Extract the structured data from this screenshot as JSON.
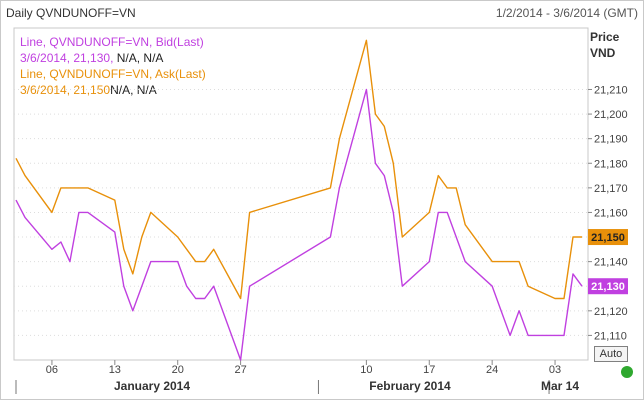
{
  "header": {
    "title": "Daily QVNDUNOFF=VN",
    "date_range": "1/2/2014 - 3/6/2014 (GMT)"
  },
  "axis": {
    "price_label": "Price",
    "unit_label": "VND"
  },
  "legend": {
    "bid_series": "Line, QVNDUNOFF=VN, Bid(Last)",
    "bid_value": "3/6/2014, 21,130,",
    "bid_na": " N/A, N/A",
    "ask_series": "Line, QVNDUNOFF=VN, Ask(Last)",
    "ask_value": "3/6/2014, 21,150",
    "ask_na": "N/A, N/A"
  },
  "controls": {
    "auto_label": "Auto"
  },
  "colors": {
    "bid": "#c040e0",
    "ask": "#e8900a",
    "status": "#2fa82f"
  },
  "chart_data": {
    "type": "line",
    "x": [
      "2014-01-02",
      "2014-01-03",
      "2014-01-06",
      "2014-01-07",
      "2014-01-08",
      "2014-01-09",
      "2014-01-10",
      "2014-01-13",
      "2014-01-14",
      "2014-01-15",
      "2014-01-16",
      "2014-01-17",
      "2014-01-20",
      "2014-01-21",
      "2014-01-22",
      "2014-01-23",
      "2014-01-24",
      "2014-01-27",
      "2014-01-28",
      "2014-02-06",
      "2014-02-07",
      "2014-02-10",
      "2014-02-11",
      "2014-02-12",
      "2014-02-13",
      "2014-02-14",
      "2014-02-17",
      "2014-02-18",
      "2014-02-19",
      "2014-02-20",
      "2014-02-21",
      "2014-02-24",
      "2014-02-25",
      "2014-02-26",
      "2014-02-27",
      "2014-02-28",
      "2014-03-03",
      "2014-03-04",
      "2014-03-05",
      "2014-03-06"
    ],
    "x_tick_labels": [
      "06",
      "13",
      "20",
      "27",
      "10",
      "17",
      "24",
      "03"
    ],
    "month_labels": [
      "January 2014",
      "February 2014",
      "Mar 14"
    ],
    "series": [
      {
        "name": "Bid(Last)",
        "values": [
          21165,
          21158,
          21145,
          21148,
          21140,
          21160,
          21160,
          21152,
          21130,
          21120,
          21130,
          21140,
          21140,
          21130,
          21125,
          21125,
          21130,
          21100,
          21130,
          21150,
          21170,
          21210,
          21180,
          21175,
          21160,
          21130,
          21140,
          21160,
          21160,
          21150,
          21140,
          21130,
          21120,
          21110,
          21120,
          21110,
          21110,
          21110,
          21135,
          21130
        ]
      },
      {
        "name": "Ask(Last)",
        "values": [
          21182,
          21175,
          21160,
          21170,
          21170,
          21170,
          21170,
          21165,
          21145,
          21135,
          21150,
          21160,
          21150,
          21145,
          21140,
          21140,
          21145,
          21125,
          21160,
          21170,
          21190,
          21230,
          21200,
          21195,
          21180,
          21150,
          21160,
          21175,
          21170,
          21170,
          21155,
          21140,
          21140,
          21140,
          21140,
          21130,
          21125,
          21125,
          21150,
          21150
        ]
      }
    ],
    "y_ticks": [
      21110,
      21120,
      21130,
      21140,
      21150,
      21160,
      21170,
      21180,
      21190,
      21200,
      21210
    ],
    "y_tick_labels": [
      "21,110",
      "21,120",
      "21,130",
      "21,140",
      "21,150",
      "21,160",
      "21,170",
      "21,180",
      "21,190",
      "21,200",
      "21,210"
    ],
    "last_value_labels": {
      "bid": "21,130",
      "ask": "21,150"
    },
    "ylim": [
      21100,
      21235
    ]
  }
}
